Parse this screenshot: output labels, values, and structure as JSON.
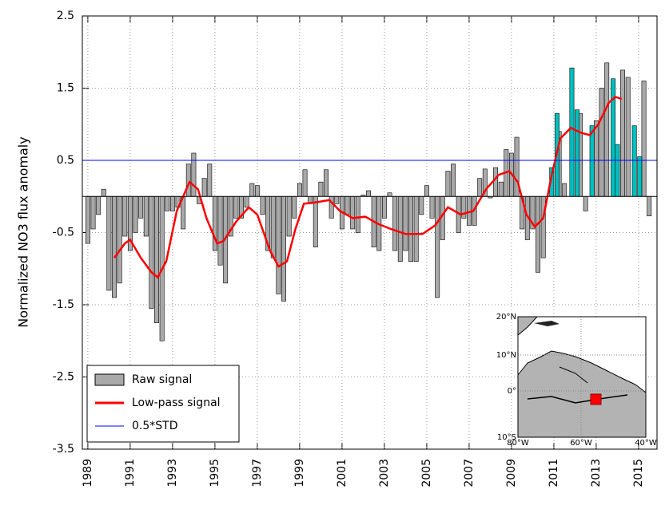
{
  "chart_data": {
    "type": "bar",
    "ylabel": "Normalized NO3 flux anomaly",
    "xlim": [
      1988.74,
      2015.87
    ],
    "ylim": [
      -3.5,
      2.5
    ],
    "xticks": [
      1989,
      1991,
      1993,
      1995,
      1997,
      1999,
      2001,
      2003,
      2005,
      2007,
      2009,
      2011,
      2013,
      2015
    ],
    "yticks": [
      -3.5,
      -2.5,
      -1.5,
      -0.5,
      0.5,
      1.5,
      2.5
    ],
    "grid": true,
    "legend": "lower left",
    "series": [
      {
        "name": "Raw signal",
        "color": "#a9a9a9",
        "x": [
          1989,
          1989.25,
          1989.5,
          1989.75,
          1990,
          1990.25,
          1990.5,
          1990.75,
          1991,
          1991.25,
          1991.5,
          1991.75,
          1992,
          1992.25,
          1992.5,
          1992.75,
          1993,
          1993.25,
          1993.5,
          1993.75,
          1994,
          1994.25,
          1994.5,
          1994.75,
          1995,
          1995.25,
          1995.5,
          1995.75,
          1996,
          1996.25,
          1996.5,
          1996.75,
          1997,
          1997.25,
          1997.5,
          1997.75,
          1998,
          1998.25,
          1998.5,
          1998.75,
          1999,
          1999.25,
          1999.5,
          1999.75,
          2000,
          2000.25,
          2000.5,
          2000.75,
          2001,
          2001.25,
          2001.5,
          2001.75,
          2002,
          2002.25,
          2002.5,
          2002.75,
          2003,
          2003.25,
          2003.5,
          2003.75,
          2004,
          2004.25,
          2004.5,
          2004.75,
          2005,
          2005.25,
          2005.5,
          2005.75,
          2006,
          2006.25,
          2006.5,
          2006.75,
          2007,
          2007.25,
          2007.5,
          2007.75,
          2008,
          2008.25,
          2008.5,
          2008.75,
          2009,
          2009.25,
          2009.5,
          2009.75,
          2010,
          2010.25,
          2010.5,
          2010.75,
          2011,
          2011.25,
          2011.5,
          2011.75,
          2012,
          2012.25,
          2012.5,
          2012.75,
          2013,
          2013.25,
          2013.5,
          2013.75,
          2014,
          2014.25,
          2014.5,
          2014.75,
          2015,
          2015.25,
          2015.5
        ],
        "values": [
          -0.65,
          -0.45,
          -0.25,
          0.1,
          -1.3,
          -1.4,
          -1.2,
          -0.55,
          -0.75,
          -0.5,
          -0.3,
          -0.55,
          -1.55,
          -1.75,
          -2.0,
          -0.2,
          -0.2,
          -0.15,
          -0.45,
          0.45,
          0.6,
          -0.1,
          0.25,
          0.45,
          -0.75,
          -0.95,
          -1.2,
          -0.55,
          -0.3,
          -0.3,
          -0.15,
          0.18,
          0.15,
          -0.25,
          -0.75,
          -0.85,
          -1.35,
          -1.45,
          -0.55,
          -0.3,
          0.18,
          0.37,
          -0.1,
          -0.7,
          0.2,
          0.37,
          -0.3,
          -0.1,
          -0.45,
          -0.25,
          -0.45,
          -0.5,
          0.02,
          0.08,
          -0.7,
          -0.75,
          -0.3,
          0.05,
          -0.75,
          -0.9,
          -0.75,
          -0.9,
          -0.9,
          -0.25,
          0.15,
          -0.3,
          -1.4,
          -0.6,
          0.35,
          0.45,
          -0.5,
          -0.3,
          -0.4,
          -0.4,
          0.25,
          0.38,
          -0.02,
          0.4,
          0.2,
          0.65,
          0.6,
          0.82,
          -0.45,
          -0.6,
          -0.45,
          -1.05,
          -0.85,
          null,
          null,
          0.9,
          0.18,
          null,
          null,
          1.15,
          -0.2,
          null,
          1.05,
          1.5,
          1.85,
          null,
          null,
          1.75,
          1.65,
          null,
          null,
          1.6,
          -0.27
        ]
      },
      {
        "color": "#00bfbf",
        "x": [
          2010.9,
          2011.15,
          2011.85,
          2012.1,
          2012.8,
          2013.8,
          2014.0,
          2014.8,
          2015.05
        ],
        "values": [
          0.4,
          1.15,
          1.78,
          1.2,
          0.98,
          1.63,
          0.72,
          0.98,
          0.55
        ]
      },
      {
        "name": "Low-pass signal",
        "type": "line",
        "color": "#ff0000",
        "x": [
          1990.25,
          1990.75,
          1991,
          1991.5,
          1992,
          1992.3,
          1992.7,
          1993.2,
          1993.8,
          1994.2,
          1994.6,
          1995.1,
          1995.4,
          1996,
          1996.6,
          1997,
          1997.6,
          1998,
          1998.4,
          1998.8,
          1999.2,
          1999.8,
          2000.4,
          2000.9,
          2001.5,
          2002.1,
          2002.7,
          2003.3,
          2004,
          2004.8,
          2005.4,
          2006,
          2006.6,
          2007.2,
          2007.8,
          2008.4,
          2008.9,
          2009.3,
          2009.7,
          2010.1,
          2010.5,
          2010.9,
          2011.3,
          2011.8,
          2012.3,
          2012.7,
          2013.1,
          2013.6,
          2013.9,
          2014.2
        ],
        "values": [
          -0.85,
          -0.65,
          -0.6,
          -0.85,
          -1.05,
          -1.12,
          -0.9,
          -0.2,
          0.2,
          0.1,
          -0.3,
          -0.65,
          -0.62,
          -0.35,
          -0.15,
          -0.25,
          -0.75,
          -0.97,
          -0.9,
          -0.45,
          -0.1,
          -0.08,
          -0.05,
          -0.2,
          -0.3,
          -0.28,
          -0.38,
          -0.45,
          -0.52,
          -0.52,
          -0.4,
          -0.15,
          -0.25,
          -0.2,
          0.1,
          0.3,
          0.35,
          0.2,
          -0.25,
          -0.42,
          -0.3,
          0.3,
          0.8,
          0.95,
          0.88,
          0.85,
          1.0,
          1.3,
          1.38,
          1.35
        ]
      }
    ],
    "hline": {
      "name": "0.5*STD",
      "value": 0.5,
      "color": "#0000ff"
    },
    "inset": {
      "lat_labels": [
        "20°N",
        "10°N",
        "0°",
        "10°S"
      ],
      "lon_labels": [
        "80°W",
        "60°W",
        "40°W"
      ]
    }
  }
}
